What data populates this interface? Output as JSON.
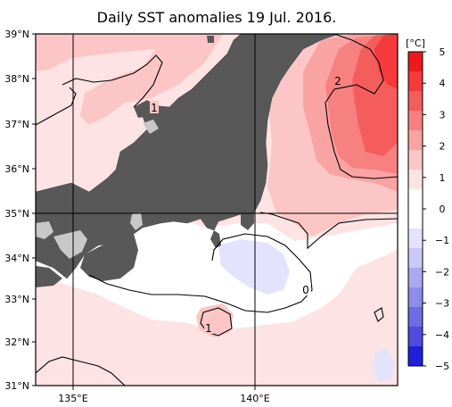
{
  "title": "Daily SST anomalies 19 Jul. 2016.",
  "lat_labels": [
    "39°N",
    "38°N",
    "37°N",
    "36°N",
    "35°N",
    "34°N",
    "33°N",
    "32°N",
    "31°N"
  ],
  "lon_labels": [
    "135°E",
    "140°E"
  ],
  "colorbar": {
    "unit": "[°C]",
    "ticks": [
      "5",
      "4",
      "3",
      "2",
      "1",
      "0",
      "−1",
      "−2",
      "−3",
      "−4",
      "−5"
    ],
    "colors": [
      "#ee1a1a",
      "#f43a3a",
      "#f55d5d",
      "#f78080",
      "#f9a3a3",
      "#fcc6c6",
      "#fde3e3",
      "#ffffff",
      "#ffffff",
      "#e3e3fd",
      "#c9c9f6",
      "#a9a9f0",
      "#8c8cea",
      "#6d6de4",
      "#4c4cdd",
      "#2020dc"
    ]
  },
  "contour_labels": [
    "2",
    "1",
    "0",
    "1"
  ],
  "colors": {
    "land": "#585858",
    "lake": "#c8c8c8",
    "grid": "#000000"
  }
}
